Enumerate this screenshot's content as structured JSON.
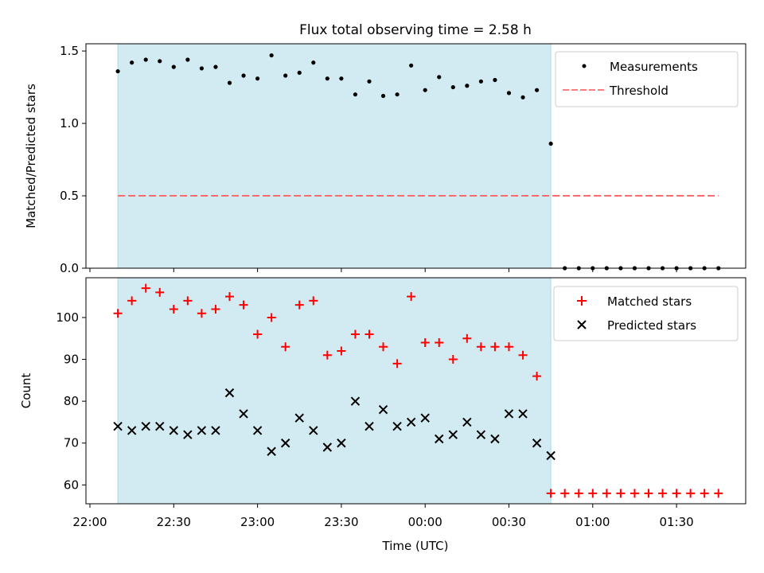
{
  "title": "Flux total observing time = 2.58 h",
  "colors": {
    "shade": "#add8e6",
    "matched": "#ff0000",
    "predicted": "#000000",
    "measurement": "#000000",
    "threshold": "#ff6b6b"
  },
  "chart_data": [
    {
      "type": "scatter",
      "ylabel": "Matched/Predicted stars",
      "ylim": [
        0,
        1.55
      ],
      "yticks": [
        "0.0",
        "0.5",
        "1.0",
        "1.5"
      ],
      "ytick_values": [
        0,
        0.5,
        1.0,
        1.5
      ],
      "grid": false,
      "legend_position": "top-right",
      "shaded_span": [
        "22:10",
        "00:45"
      ],
      "x": [
        "22:10",
        "22:15",
        "22:20",
        "22:25",
        "22:30",
        "22:35",
        "22:40",
        "22:45",
        "22:50",
        "22:55",
        "23:00",
        "23:05",
        "23:10",
        "23:15",
        "23:20",
        "23:25",
        "23:30",
        "23:35",
        "23:40",
        "23:45",
        "23:50",
        "23:55",
        "00:00",
        "00:05",
        "00:10",
        "00:15",
        "00:20",
        "00:25",
        "00:30",
        "00:35",
        "00:40",
        "00:45",
        "00:50",
        "00:55",
        "01:00",
        "01:05",
        "01:10",
        "01:15",
        "01:20",
        "01:25",
        "01:30",
        "01:35",
        "01:40",
        "01:45"
      ],
      "series": [
        {
          "name": "Measurements",
          "marker": "dot",
          "values": [
            1.36,
            1.42,
            1.44,
            1.43,
            1.39,
            1.44,
            1.38,
            1.39,
            1.28,
            1.33,
            1.31,
            1.47,
            1.33,
            1.35,
            1.42,
            1.31,
            1.31,
            1.2,
            1.29,
            1.19,
            1.2,
            1.4,
            1.23,
            1.32,
            1.25,
            1.26,
            1.29,
            1.3,
            1.21,
            1.18,
            1.23,
            0.86,
            0,
            0,
            0,
            0,
            0,
            0,
            0,
            0,
            0,
            0,
            0,
            0
          ]
        },
        {
          "name": "Threshold",
          "style": "dashed",
          "x_range": [
            "22:10",
            "01:45"
          ],
          "value": 0.5
        }
      ]
    },
    {
      "type": "scatter",
      "ylabel": "Count",
      "xlabel": "Time (UTC)",
      "ylim": [
        55.5,
        109.5
      ],
      "yticks": [
        "60",
        "70",
        "80",
        "90",
        "100"
      ],
      "ytick_values": [
        60,
        70,
        80,
        90,
        100
      ],
      "xticks": [
        "22:00",
        "22:30",
        "23:00",
        "23:30",
        "00:00",
        "00:30",
        "01:00",
        "01:30"
      ],
      "grid": false,
      "legend_position": "top-right",
      "shaded_span": [
        "22:10",
        "00:45"
      ],
      "x": [
        "22:10",
        "22:15",
        "22:20",
        "22:25",
        "22:30",
        "22:35",
        "22:40",
        "22:45",
        "22:50",
        "22:55",
        "23:00",
        "23:05",
        "23:10",
        "23:15",
        "23:20",
        "23:25",
        "23:30",
        "23:35",
        "23:40",
        "23:45",
        "23:50",
        "23:55",
        "00:00",
        "00:05",
        "00:10",
        "00:15",
        "00:20",
        "00:25",
        "00:30",
        "00:35",
        "00:40",
        "00:45",
        "00:50",
        "00:55",
        "01:00",
        "01:05",
        "01:10",
        "01:15",
        "01:20",
        "01:25",
        "01:30",
        "01:35",
        "01:40",
        "01:45"
      ],
      "series": [
        {
          "name": "Matched stars",
          "marker": "plus",
          "values": [
            101,
            104,
            107,
            106,
            102,
            104,
            101,
            102,
            105,
            103,
            96,
            100,
            93,
            103,
            104,
            91,
            92,
            96,
            96,
            93,
            89,
            105,
            94,
            94,
            90,
            95,
            93,
            93,
            93,
            91,
            86,
            58,
            58,
            58,
            58,
            58,
            58,
            58,
            58,
            58,
            58,
            58,
            58,
            58
          ]
        },
        {
          "name": "Predicted stars",
          "marker": "x",
          "values": [
            74,
            73,
            74,
            74,
            73,
            72,
            73,
            73,
            82,
            77,
            73,
            68,
            70,
            76,
            73,
            69,
            70,
            80,
            74,
            78,
            74,
            75,
            76,
            71,
            72,
            75,
            72,
            71,
            77,
            77,
            70,
            67
          ]
        }
      ]
    }
  ]
}
